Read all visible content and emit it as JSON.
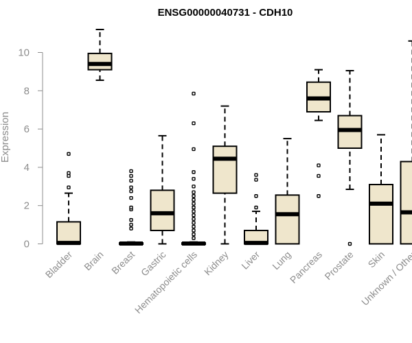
{
  "chart_data": {
    "type": "boxplot",
    "title": "ENSG00000040731 - CDH10",
    "ylabel": "Expression",
    "ylim": [
      0,
      11.3
    ],
    "yticks": [
      0,
      2,
      4,
      6,
      8,
      10
    ],
    "box_fill": "#efe6cc",
    "axis_color": "#8c8c8c",
    "categories": [
      "Bladder",
      "Brain",
      "Breast",
      "Gastric",
      "Hematopoietic cells",
      "Kidney",
      "Liver",
      "Lung",
      "Pancreas",
      "Prostate",
      "Skin",
      "Unknown / Other"
    ],
    "boxes": [
      {
        "whisker_low": 0,
        "q1": 0,
        "median": 0.05,
        "q3": 1.15,
        "whisker_high": 2.65,
        "outliers": [
          2.95,
          3.55,
          3.7,
          4.7
        ]
      },
      {
        "whisker_low": 8.55,
        "q1": 9.1,
        "median": 9.4,
        "q3": 9.95,
        "whisker_high": 11.2,
        "outliers": []
      },
      {
        "whisker_low": 0,
        "q1": 0,
        "median": 0.02,
        "q3": 0.05,
        "whisker_high": 0.1,
        "outliers": [
          0.8,
          1.0,
          1.25,
          1.8,
          1.9,
          2.4,
          2.75,
          2.95,
          3.3,
          3.55,
          3.8
        ]
      },
      {
        "whisker_low": 0,
        "q1": 0.7,
        "median": 1.6,
        "q3": 2.8,
        "whisker_high": 5.65,
        "outliers": []
      },
      {
        "whisker_low": 0,
        "q1": 0,
        "median": 0.02,
        "q3": 0.05,
        "whisker_high": 0.1,
        "outliers": [
          0.3,
          0.5,
          0.7,
          0.9,
          1.1,
          1.3,
          1.5,
          1.7,
          1.9,
          2.1,
          2.3,
          2.5,
          2.7,
          3.0,
          3.4,
          3.75,
          4.95,
          6.3,
          7.85
        ]
      },
      {
        "whisker_low": 0,
        "q1": 2.65,
        "median": 4.45,
        "q3": 5.1,
        "whisker_high": 7.2,
        "outliers": []
      },
      {
        "whisker_low": 0,
        "q1": 0,
        "median": 0.05,
        "q3": 0.7,
        "whisker_high": 1.7,
        "outliers": [
          1.9,
          2.5,
          3.35,
          3.6
        ]
      },
      {
        "whisker_low": 0,
        "q1": 0,
        "median": 1.55,
        "q3": 2.55,
        "whisker_high": 5.5,
        "outliers": []
      },
      {
        "whisker_low": 6.45,
        "q1": 6.9,
        "median": 7.6,
        "q3": 8.45,
        "whisker_high": 9.1,
        "outliers": [
          2.5,
          3.55,
          4.1
        ]
      },
      {
        "whisker_low": 2.85,
        "q1": 5.0,
        "median": 5.95,
        "q3": 6.7,
        "whisker_high": 9.05,
        "outliers": [
          0
        ]
      },
      {
        "whisker_low": 0,
        "q1": 0,
        "median": 2.1,
        "q3": 3.1,
        "whisker_high": 5.7,
        "outliers": []
      },
      {
        "whisker_low": 0,
        "q1": 0,
        "median": 1.65,
        "q3": 4.3,
        "whisker_high": 10.6,
        "outliers": []
      }
    ]
  }
}
